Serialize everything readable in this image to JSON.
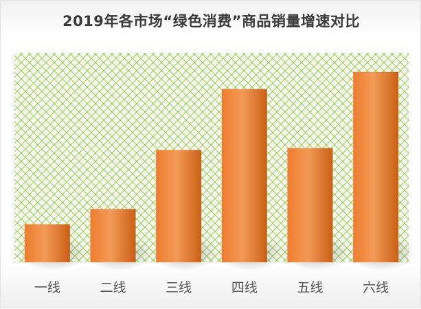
{
  "chart_data": {
    "type": "bar",
    "title": "2019年各市场“绿色消费”商品销量增速对比",
    "categories": [
      "一线",
      "二线",
      "三线",
      "四线",
      "五线",
      "六线"
    ],
    "values": [
      2.0,
      2.8,
      5.9,
      9.1,
      6.0,
      10.0
    ],
    "ylim": [
      0,
      11
    ],
    "grid": false,
    "legend": "none",
    "colors": {
      "bar": "#ed7d31",
      "bar_light": "#f39a55",
      "bar_dark": "#c95f17",
      "pattern": "#9cca5f",
      "plot_bg": "#f6faee"
    }
  }
}
